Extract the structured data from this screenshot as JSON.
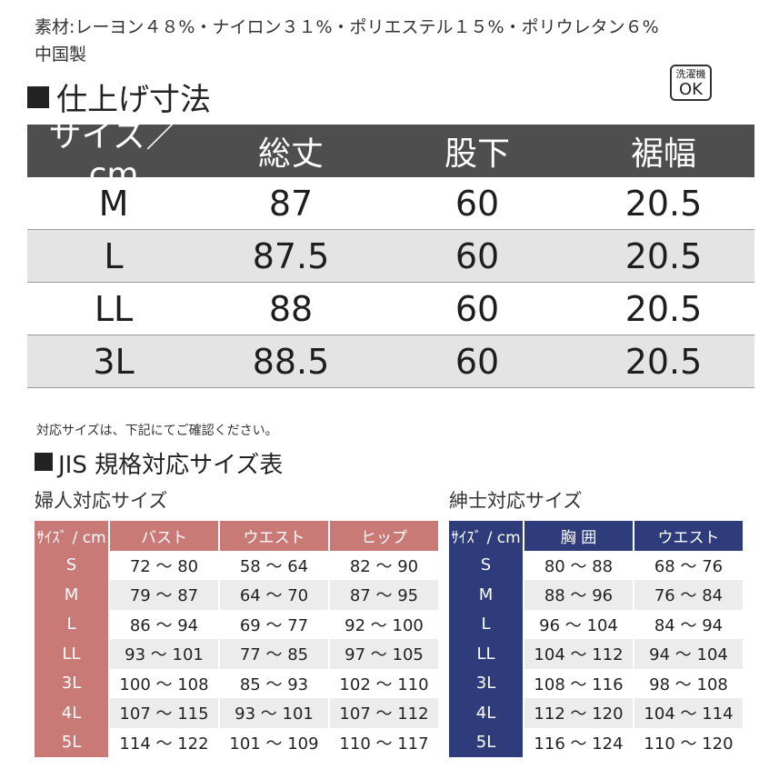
{
  "header": {
    "material": "素材:レーヨン４８%・ナイロン３１%・ポリエステル１５%・ポリウレタン６%",
    "origin": "中国製",
    "wash_label_top": "洗濯機",
    "wash_label_bottom": "OK",
    "title": "仕上げ寸法"
  },
  "size_table": {
    "headers": [
      "サイズ／cm",
      "総丈",
      "股下",
      "裾幅"
    ],
    "rows": [
      [
        "M",
        "87",
        "60",
        "20.5"
      ],
      [
        "L",
        "87.5",
        "60",
        "20.5"
      ],
      [
        "LL",
        "88",
        "60",
        "20.5"
      ],
      [
        "3L",
        "88.5",
        "60",
        "20.5"
      ]
    ]
  },
  "note": "対応サイズは、下記にてご確認ください。",
  "jis_title": "JIS 規格対応サイズ表",
  "women": {
    "title": "婦人対応サイズ",
    "headers": [
      "ｻｲｽﾞ / cm",
      "バスト",
      "ウエスト",
      "ヒップ"
    ],
    "rows": [
      [
        "S",
        "72 ～ 80",
        "58 ～ 64",
        "82 ～ 90"
      ],
      [
        "M",
        "79 ～ 87",
        "64 ～ 70",
        "87 ～ 95"
      ],
      [
        "L",
        "86 ～ 94",
        "69 ～ 77",
        "92 ～ 100"
      ],
      [
        "LL",
        "93 ～ 101",
        "77 ～ 85",
        "97 ～ 105"
      ],
      [
        "3L",
        "100 ～ 108",
        "85 ～ 93",
        "102 ～ 110"
      ],
      [
        "4L",
        "107 ～ 115",
        "93 ～ 101",
        "107 ～ 112"
      ],
      [
        "5L",
        "114 ～ 122",
        "101 ～ 109",
        "110 ～ 117"
      ]
    ]
  },
  "men": {
    "title": "紳士対応サイズ",
    "headers": [
      "ｻｲｽﾞ / cm",
      "胸 囲",
      "ウエスト"
    ],
    "rows": [
      [
        "S",
        "80 ～ 88",
        "68 ～ 76"
      ],
      [
        "M",
        "88 ～ 96",
        "76 ～ 84"
      ],
      [
        "L",
        "96 ～ 104",
        "84 ～ 94"
      ],
      [
        "LL",
        "104 ～ 112",
        "94 ～ 104"
      ],
      [
        "3L",
        "108 ～ 116",
        "98 ～ 108"
      ],
      [
        "4L",
        "112 ～ 120",
        "104 ～ 114"
      ],
      [
        "5L",
        "116 ～ 124",
        "110 ～ 120"
      ]
    ]
  }
}
